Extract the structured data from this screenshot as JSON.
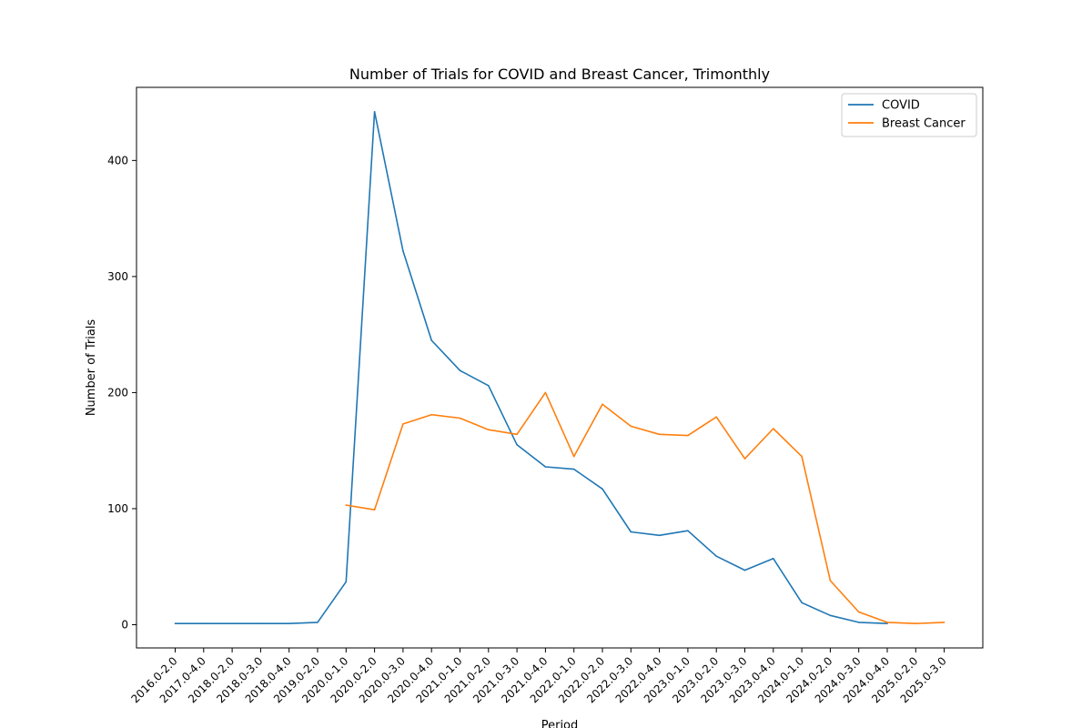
{
  "chart_data": {
    "type": "line",
    "title": "Number of Trials for COVID and Breast Cancer, Trimonthly",
    "xlabel": "Period",
    "ylabel": "Number of Trials",
    "ylim": [
      -20,
      463
    ],
    "yticks": [
      0,
      100,
      200,
      300,
      400
    ],
    "grid": false,
    "legend_position": "top-right",
    "categories": [
      "2016.0-2.0",
      "2017.0-4.0",
      "2018.0-2.0",
      "2018.0-3.0",
      "2018.0-4.0",
      "2019.0-2.0",
      "2020.0-1.0",
      "2020.0-2.0",
      "2020.0-3.0",
      "2020.0-4.0",
      "2021.0-1.0",
      "2021.0-2.0",
      "2021.0-3.0",
      "2021.0-4.0",
      "2022.0-1.0",
      "2022.0-2.0",
      "2022.0-3.0",
      "2022.0-4.0",
      "2023.0-1.0",
      "2023.0-2.0",
      "2023.0-3.0",
      "2023.0-4.0",
      "2024.0-1.0",
      "2024.0-2.0",
      "2024.0-3.0",
      "2024.0-4.0",
      "2025.0-2.0",
      "2025.0-3.0"
    ],
    "series": [
      {
        "name": "COVID",
        "color": "#1f77b4",
        "values": [
          1,
          1,
          1,
          1,
          1,
          2,
          37,
          442,
          322,
          245,
          219,
          206,
          155,
          136,
          134,
          117,
          80,
          77,
          81,
          59,
          47,
          57,
          19,
          8,
          2,
          1,
          null,
          null
        ]
      },
      {
        "name": "Breast Cancer",
        "color": "#ff7f0e",
        "values": [
          null,
          null,
          null,
          null,
          null,
          null,
          103,
          99,
          173,
          181,
          178,
          168,
          164,
          200,
          145,
          190,
          171,
          164,
          163,
          179,
          143,
          169,
          145,
          38,
          11,
          2,
          1,
          2
        ]
      }
    ]
  }
}
